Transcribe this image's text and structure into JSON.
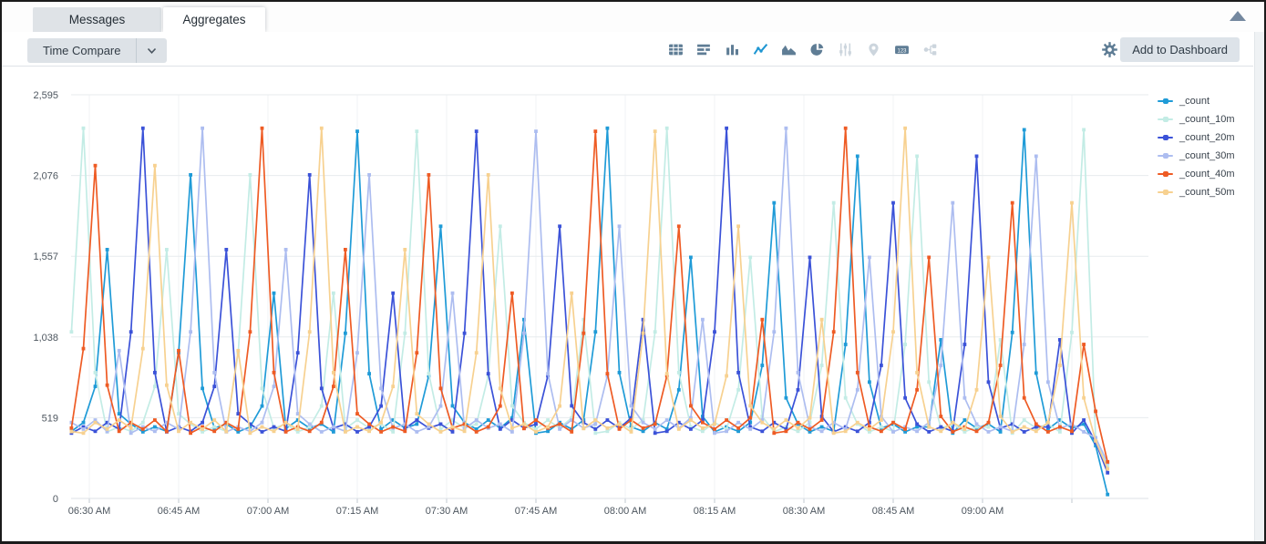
{
  "tabs": [
    {
      "label": "Messages",
      "active": false
    },
    {
      "label": "Aggregates",
      "active": true
    }
  ],
  "toolbar": {
    "time_compare_label": "Time Compare",
    "add_to_dashboard_label": "Add to Dashboard",
    "icons": [
      {
        "name": "table-view-icon",
        "state": "enabled"
      },
      {
        "name": "bar-chart-icon",
        "state": "enabled"
      },
      {
        "name": "column-chart-icon",
        "state": "enabled"
      },
      {
        "name": "line-chart-icon",
        "state": "active"
      },
      {
        "name": "area-chart-icon",
        "state": "enabled"
      },
      {
        "name": "pie-chart-icon",
        "state": "enabled"
      },
      {
        "name": "settings-sliders-icon",
        "state": "disabled"
      },
      {
        "name": "map-pin-icon",
        "state": "disabled"
      },
      {
        "name": "single-value-123-icon",
        "state": "enabled"
      },
      {
        "name": "node-diagram-icon",
        "state": "disabled"
      },
      {
        "name": "gear-icon",
        "state": "enabled"
      }
    ]
  },
  "chart_data": {
    "type": "line",
    "title": "",
    "xlabel": "",
    "ylabel": "",
    "ylim": [
      0,
      2595
    ],
    "grid": true,
    "legend_position": "top-right",
    "x_start": "06:27 AM",
    "x_step_minutes": 2,
    "x_tick_labels": [
      "06:30 AM",
      "06:45 AM",
      "07:00 AM",
      "07:15 AM",
      "07:30 AM",
      "07:45 AM",
      "08:00 AM",
      "08:15 AM",
      "08:30 AM",
      "08:45 AM",
      "09:00 AM"
    ],
    "y_ticks": [
      0,
      519,
      1038,
      1557,
      2076,
      2595
    ],
    "y_tick_labels": [
      "0",
      "519",
      "1,038",
      "1,557",
      "2,076",
      "2,595"
    ],
    "series": [
      {
        "name": "_count",
        "color": "#1f9bd7",
        "values": [
          432,
          488,
          720,
          1600,
          544,
          478,
          428,
          460,
          432,
          936,
          2080,
          707,
          452,
          478,
          428,
          460,
          594,
          1320,
          449,
          504,
          452,
          478,
          428,
          1062,
          2360,
          802,
          446,
          504,
          452,
          478,
          788,
          1750,
          595,
          488,
          446,
          504,
          452,
          518,
          1150,
          420,
          432,
          488,
          446,
          504,
          1071,
          2380,
          809,
          460,
          432,
          488,
          446,
          698,
          1550,
          527,
          428,
          460,
          432,
          488,
          855,
          1900,
          646,
          478,
          428,
          460,
          432,
          990,
          2200,
          748,
          452,
          478,
          428,
          460,
          459,
          1020,
          420,
          504,
          452,
          478,
          428,
          1067,
          2370,
          806,
          446,
          504,
          452,
          478,
          340,
          25
        ]
      },
      {
        "name": "_count_10m",
        "color": "#c3ece5",
        "values": [
          1071,
          2380,
          809,
          428,
          460,
          432,
          488,
          720,
          1600,
          544,
          478,
          428,
          460,
          432,
          936,
          2080,
          707,
          452,
          478,
          428,
          460,
          594,
          1320,
          449,
          504,
          452,
          478,
          428,
          1062,
          2360,
          802,
          446,
          504,
          452,
          478,
          788,
          1750,
          595,
          488,
          446,
          504,
          452,
          518,
          1150,
          420,
          432,
          488,
          446,
          504,
          1071,
          2380,
          809,
          460,
          432,
          488,
          446,
          698,
          1550,
          527,
          428,
          460,
          432,
          488,
          855,
          1900,
          646,
          478,
          428,
          460,
          432,
          990,
          2200,
          748,
          452,
          478,
          428,
          460,
          459,
          1020,
          420,
          504,
          452,
          478,
          428,
          1067,
          2370,
          380,
          210
        ]
      },
      {
        "name": "_count_20m",
        "color": "#3b52d8",
        "values": [
          420,
          460,
          432,
          488,
          446,
          1071,
          2380,
          809,
          428,
          460,
          432,
          488,
          720,
          1600,
          544,
          478,
          428,
          460,
          432,
          936,
          2080,
          707,
          452,
          478,
          428,
          460,
          594,
          1320,
          449,
          504,
          452,
          478,
          428,
          1062,
          2360,
          802,
          446,
          504,
          452,
          478,
          788,
          1750,
          595,
          488,
          446,
          504,
          452,
          518,
          1150,
          420,
          432,
          488,
          446,
          504,
          1071,
          2380,
          809,
          460,
          432,
          488,
          446,
          698,
          1550,
          527,
          428,
          460,
          432,
          488,
          855,
          1900,
          646,
          478,
          428,
          460,
          432,
          990,
          2200,
          748,
          452,
          478,
          428,
          460,
          459,
          1020,
          420,
          504,
          360,
          165
        ]
      },
      {
        "name": "_count_30m",
        "color": "#adbdf0",
        "values": [
          488,
          446,
          504,
          430,
          950,
          420,
          460,
          432,
          488,
          446,
          1071,
          2380,
          809,
          428,
          460,
          432,
          488,
          720,
          1600,
          544,
          478,
          428,
          460,
          432,
          936,
          2080,
          707,
          452,
          478,
          428,
          460,
          594,
          1320,
          449,
          504,
          452,
          478,
          428,
          1062,
          2360,
          802,
          446,
          504,
          452,
          478,
          788,
          1750,
          595,
          488,
          446,
          504,
          452,
          518,
          1150,
          420,
          432,
          488,
          446,
          504,
          1071,
          2380,
          809,
          460,
          432,
          488,
          446,
          698,
          1550,
          527,
          428,
          460,
          432,
          488,
          855,
          1900,
          646,
          478,
          428,
          460,
          432,
          990,
          2200,
          748,
          452,
          478,
          428,
          390,
          230
        ]
      },
      {
        "name": "_count_40m",
        "color": "#ee5b24",
        "values": [
          452,
          963,
          2140,
          728,
          432,
          488,
          446,
          504,
          430,
          950,
          420,
          460,
          432,
          488,
          446,
          1071,
          2380,
          809,
          428,
          460,
          432,
          488,
          720,
          1600,
          544,
          478,
          428,
          460,
          432,
          936,
          2080,
          707,
          452,
          478,
          428,
          460,
          594,
          1320,
          449,
          504,
          452,
          478,
          428,
          1062,
          2360,
          802,
          446,
          504,
          452,
          478,
          788,
          1750,
          595,
          488,
          446,
          504,
          452,
          518,
          1150,
          420,
          432,
          488,
          446,
          504,
          1071,
          2380,
          809,
          460,
          432,
          488,
          446,
          698,
          1550,
          527,
          428,
          460,
          432,
          488,
          855,
          1900,
          646,
          478,
          428,
          460,
          432,
          990,
          560,
          235
        ]
      },
      {
        "name": "_count_50m",
        "color": "#f7d190",
        "values": [
          430,
          420,
          488,
          446,
          504,
          452,
          963,
          2140,
          728,
          432,
          488,
          446,
          504,
          430,
          950,
          420,
          460,
          432,
          488,
          446,
          1071,
          2380,
          809,
          428,
          460,
          432,
          488,
          720,
          1600,
          544,
          478,
          428,
          460,
          432,
          936,
          2080,
          707,
          452,
          478,
          428,
          460,
          594,
          1320,
          449,
          504,
          452,
          478,
          428,
          1062,
          2360,
          802,
          446,
          504,
          452,
          478,
          788,
          1750,
          595,
          488,
          446,
          504,
          452,
          518,
          1150,
          420,
          432,
          488,
          446,
          504,
          1071,
          2380,
          809,
          460,
          432,
          488,
          446,
          698,
          1550,
          527,
          428,
          460,
          432,
          488,
          855,
          1900,
          646,
          370,
          190
        ]
      }
    ]
  }
}
